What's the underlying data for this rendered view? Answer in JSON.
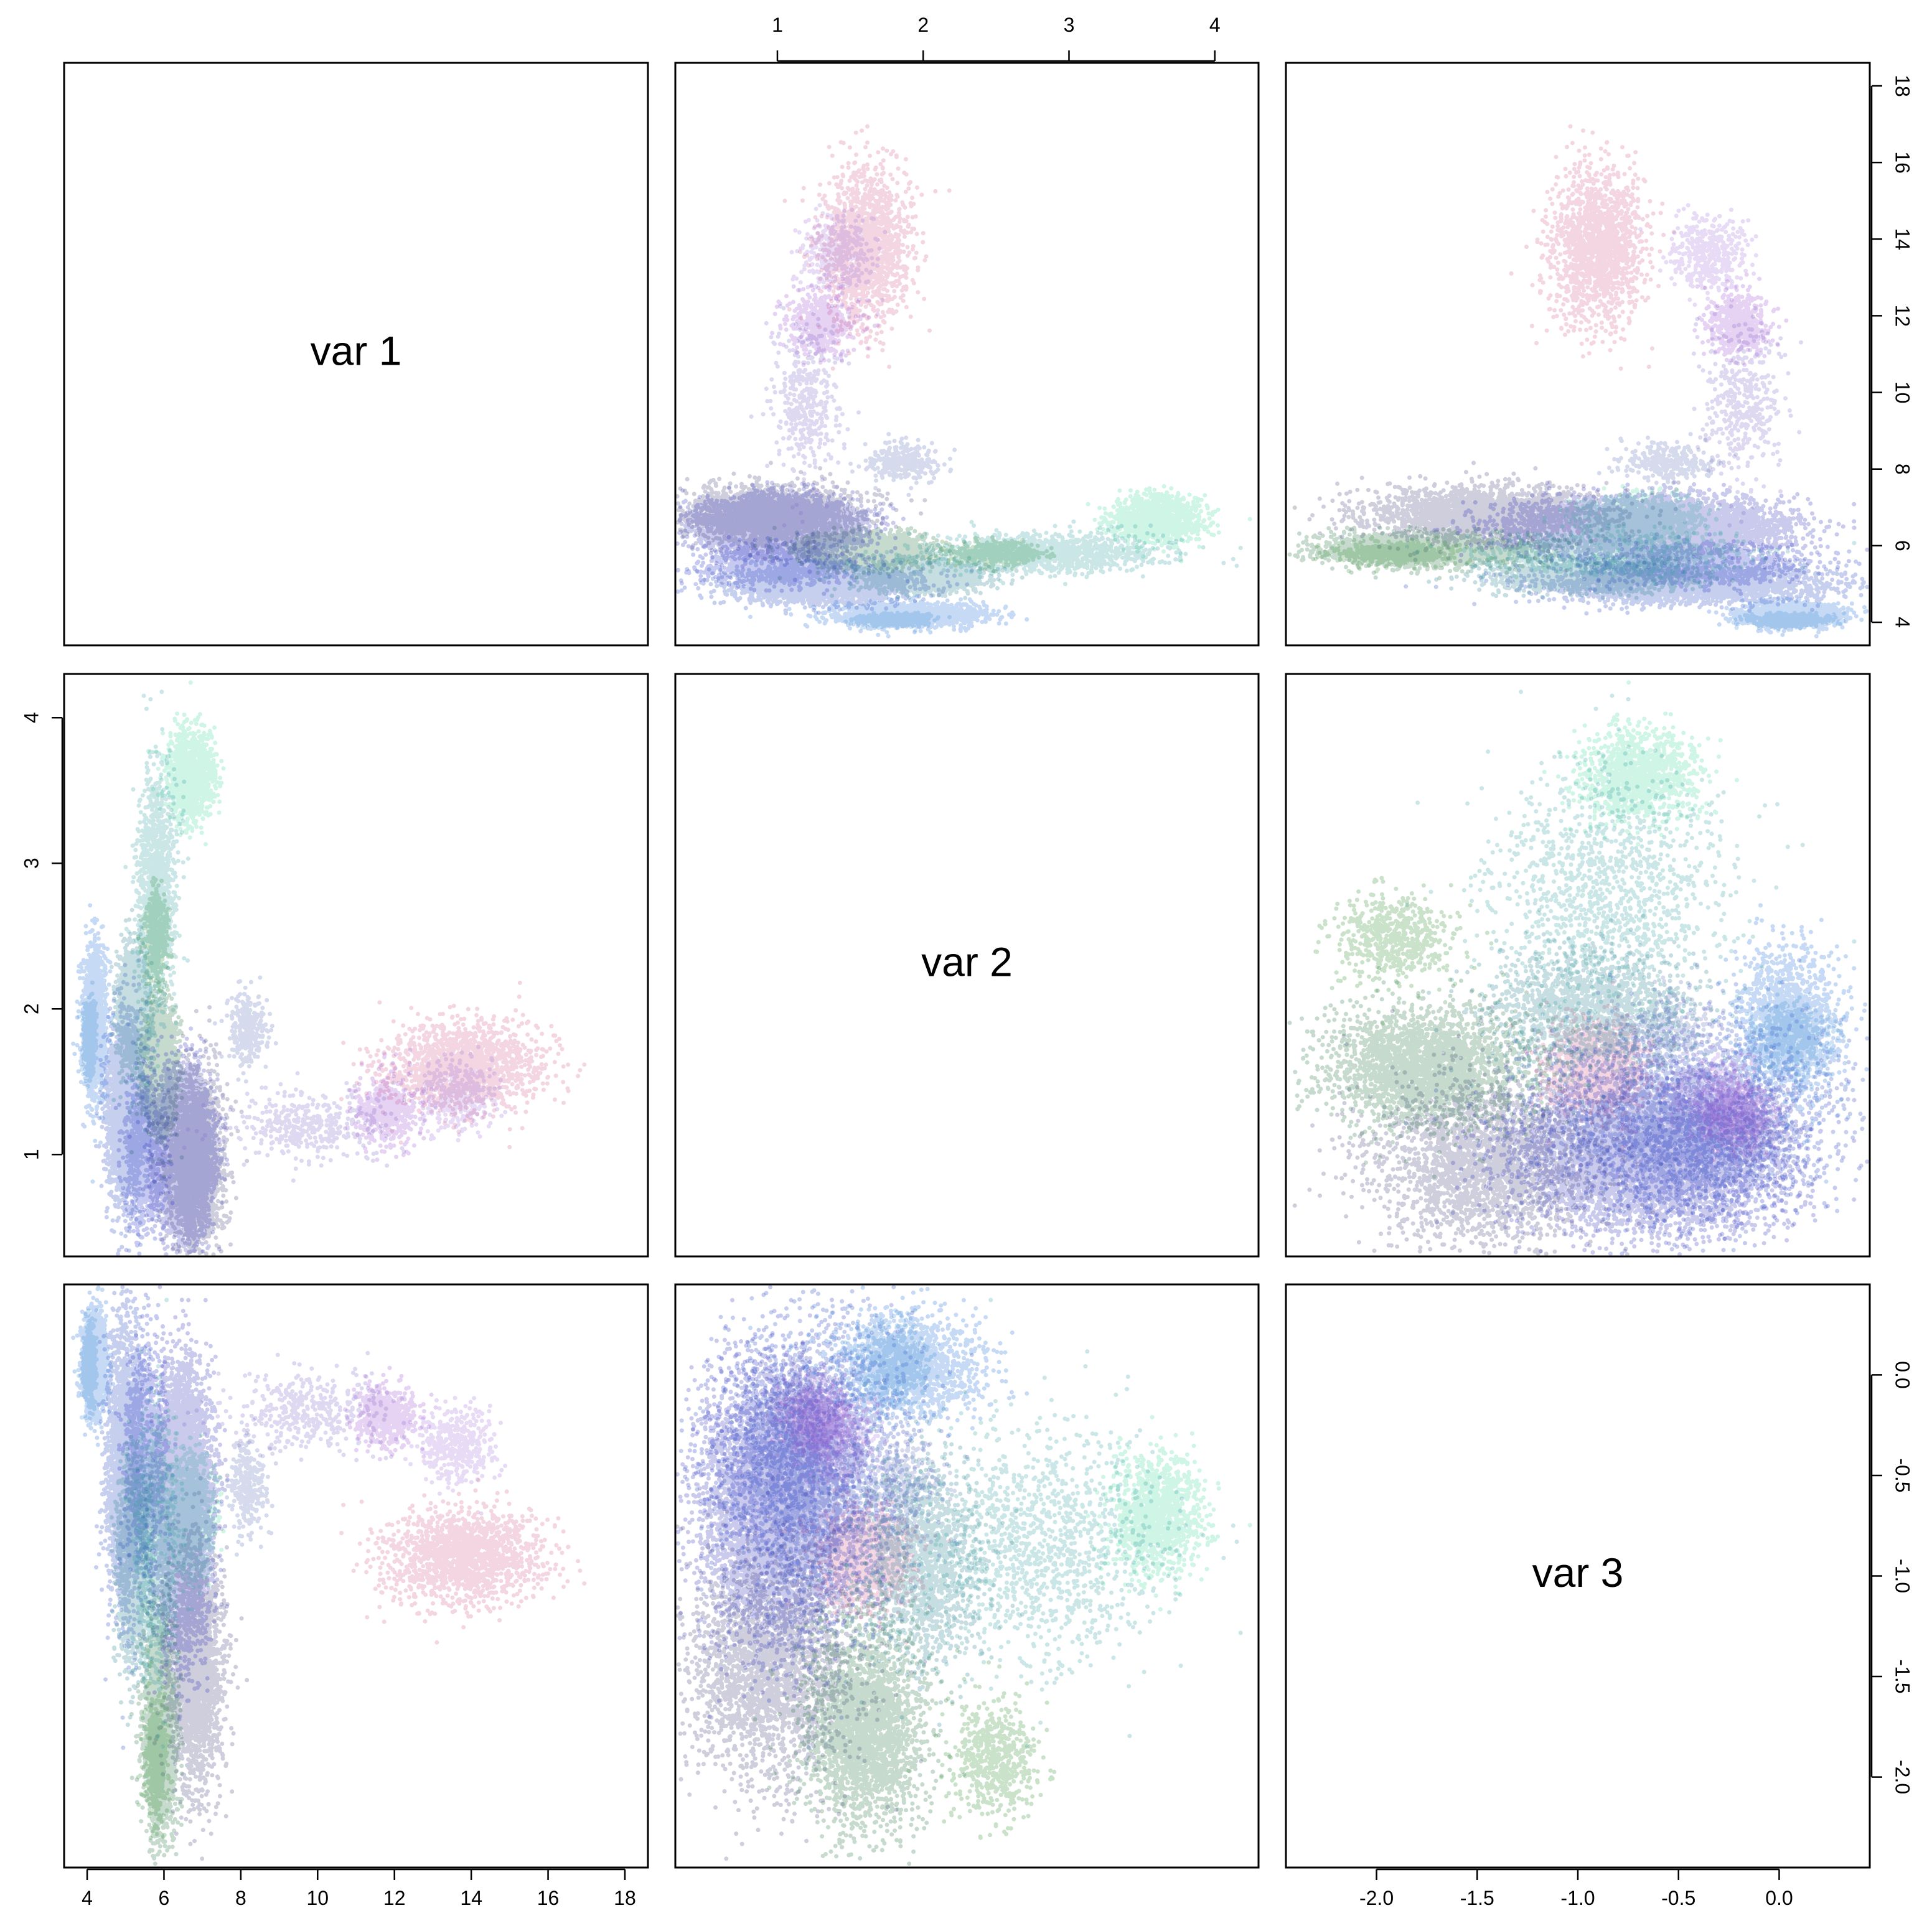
{
  "chart_data": {
    "type": "scatter",
    "title": "",
    "variables": [
      {
        "name": "var 1",
        "range": [
          3.4,
          18.6
        ],
        "ticks": [
          4,
          6,
          8,
          10,
          12,
          14,
          16,
          18
        ]
      },
      {
        "name": "var 2",
        "range": [
          0.3,
          4.3
        ],
        "ticks": [
          1,
          2,
          3,
          4
        ]
      },
      {
        "name": "var 3",
        "range": [
          -2.45,
          0.45
        ],
        "ticks": [
          -2.0,
          -1.5,
          -1.0,
          -0.5,
          0.0
        ]
      }
    ],
    "tick_labels": {
      "var1": [
        "4",
        "6",
        "8",
        "10",
        "12",
        "14",
        "16",
        "18"
      ],
      "var2": [
        "1",
        "2",
        "3",
        "4"
      ],
      "var3": [
        "-2.0",
        "-1.5",
        "-1.0",
        "-0.5",
        "0.0"
      ]
    },
    "axes_placement": {
      "top": "var 2",
      "bottom_left": "var 1",
      "bottom_right": "var 3",
      "left_middle": "var 2",
      "right_top": "var 1",
      "right_bottom": "var 3"
    },
    "grid": false,
    "legend": "none",
    "point_alpha": 0.25,
    "clusters": [
      {
        "color": "#d05a8c",
        "n": 1500,
        "mean": [
          13.8,
          1.6,
          -0.9
        ],
        "sd": [
          1.0,
          0.15,
          0.12
        ]
      },
      {
        "color": "#9a4bd0",
        "n": 500,
        "mean": [
          11.8,
          1.3,
          -0.2
        ],
        "sd": [
          0.4,
          0.12,
          0.08
        ]
      },
      {
        "color": "#a070d8",
        "n": 400,
        "mean": [
          13.6,
          1.4,
          -0.35
        ],
        "sd": [
          0.5,
          0.12,
          0.1
        ]
      },
      {
        "color": "#7a66c8",
        "n": 400,
        "mean": [
          9.8,
          1.2,
          -0.18
        ],
        "sd": [
          1.0,
          0.12,
          0.1
        ]
      },
      {
        "color": "#5c6ab8",
        "n": 300,
        "mean": [
          8.2,
          1.85,
          -0.55
        ],
        "sd": [
          0.25,
          0.12,
          0.12
        ]
      },
      {
        "color": "#2a2ab8",
        "n": 5500,
        "mean": [
          6.5,
          1.0,
          -0.65
        ],
        "sd": [
          0.35,
          0.25,
          0.32
        ]
      },
      {
        "color": "#1c2cc8",
        "n": 1200,
        "mean": [
          5.5,
          1.0,
          -0.4
        ],
        "sd": [
          0.25,
          0.25,
          0.25
        ]
      },
      {
        "color": "#2040c0",
        "n": 2500,
        "mean": [
          5.0,
          1.3,
          -0.45
        ],
        "sd": [
          0.25,
          0.3,
          0.35
        ]
      },
      {
        "color": "#3a3a78",
        "n": 2500,
        "mean": [
          6.8,
          0.95,
          -1.45
        ],
        "sd": [
          0.35,
          0.28,
          0.28
        ]
      },
      {
        "color": "#1a6ad8",
        "n": 1500,
        "mean": [
          4.2,
          1.9,
          0.05
        ],
        "sd": [
          0.15,
          0.25,
          0.12
        ]
      },
      {
        "color": "#3a8ad8",
        "n": 600,
        "mean": [
          4.05,
          1.8,
          0.05
        ],
        "sd": [
          0.08,
          0.12,
          0.1
        ]
      },
      {
        "color": "#1a7a8a",
        "n": 1500,
        "mean": [
          5.2,
          2.0,
          -0.95
        ],
        "sd": [
          0.2,
          0.2,
          0.25
        ]
      },
      {
        "color": "#2a9a9a",
        "n": 1200,
        "mean": [
          5.8,
          2.8,
          -0.85
        ],
        "sd": [
          0.25,
          0.4,
          0.3
        ]
      },
      {
        "color": "#3ad89a",
        "n": 1200,
        "mean": [
          6.7,
          3.6,
          -0.7
        ],
        "sd": [
          0.3,
          0.15,
          0.15
        ]
      },
      {
        "color": "#1a6a3a",
        "n": 2500,
        "mean": [
          5.9,
          1.6,
          -1.75
        ],
        "sd": [
          0.2,
          0.2,
          0.25
        ]
      },
      {
        "color": "#2a8a2a",
        "n": 600,
        "mean": [
          5.8,
          2.5,
          -1.9
        ],
        "sd": [
          0.15,
          0.15,
          0.15
        ]
      }
    ]
  }
}
